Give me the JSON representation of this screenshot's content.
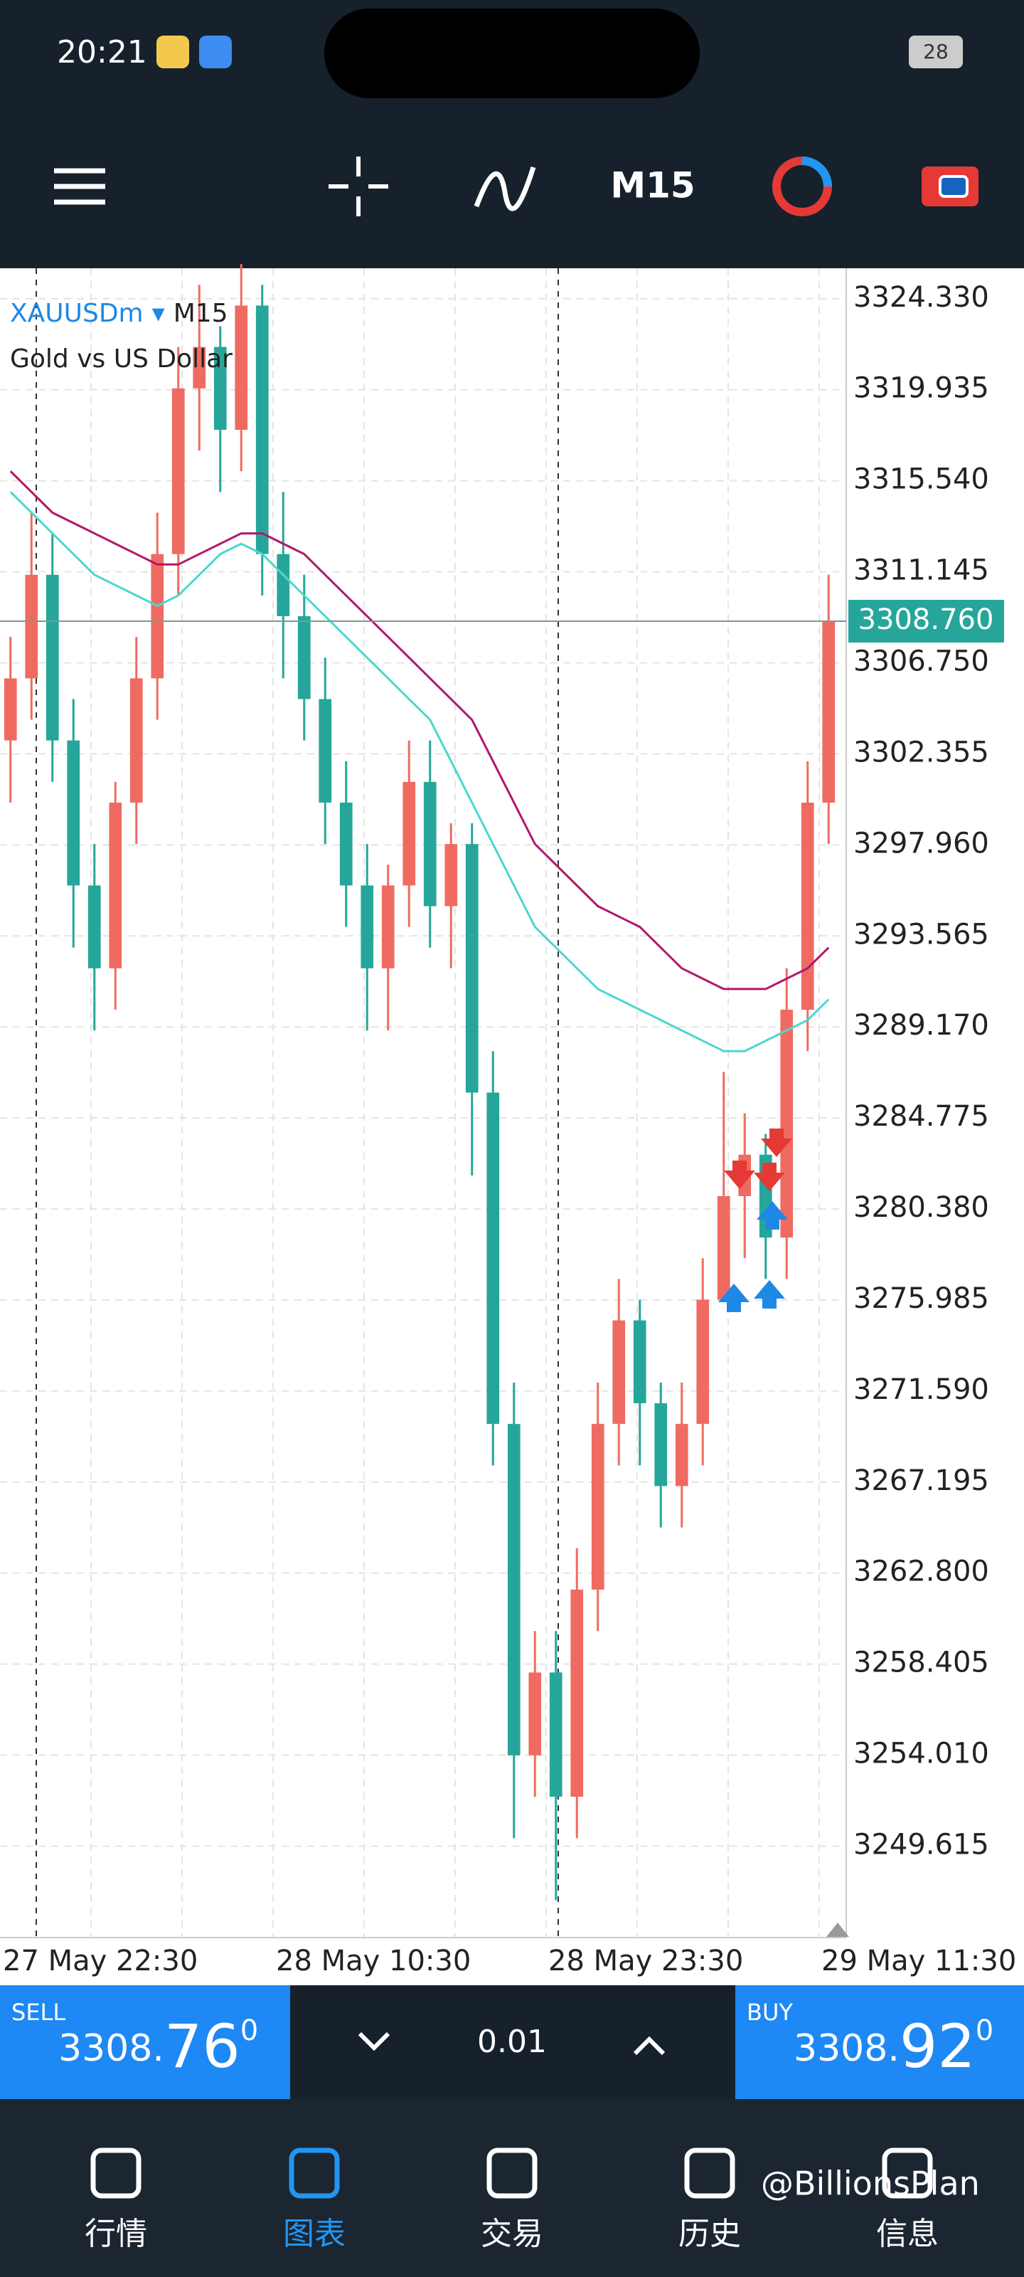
{
  "status_bar": {
    "time": "20:21",
    "battery": "28"
  },
  "toolbar": {
    "timeframe": "M15"
  },
  "chart_data": {
    "type": "candlestick",
    "symbol": "XAUUSDm",
    "timeframe": "M15",
    "description": "Gold vs US Dollar",
    "open": [
      3303,
      3306,
      3311,
      3303,
      3296,
      3292,
      3300,
      3306,
      3312,
      3320,
      3322,
      3318,
      3324,
      3312,
      3309,
      3305,
      3300,
      3296,
      3292,
      3296,
      3301,
      3295,
      3298,
      3286,
      3270,
      3254,
      3258,
      3252,
      3262,
      3270,
      3275,
      3271,
      3267,
      3270,
      3276,
      3281,
      3283,
      3279,
      3290,
      3300
    ],
    "high": [
      3308,
      3314,
      3313,
      3305,
      3298,
      3301,
      3308,
      3314,
      3322,
      3325,
      3323,
      3326,
      3325,
      3315,
      3311,
      3307,
      3302,
      3298,
      3297,
      3303,
      3303,
      3299,
      3299,
      3288,
      3272,
      3260,
      3260,
      3264,
      3272,
      3277,
      3276,
      3272,
      3272,
      3278,
      3287,
      3285,
      3284,
      3292,
      3302,
      3311
    ],
    "low": [
      3300,
      3304,
      3301,
      3293,
      3289,
      3290,
      3298,
      3304,
      3310,
      3317,
      3315,
      3316,
      3310,
      3306,
      3303,
      3298,
      3294,
      3289,
      3289,
      3294,
      3293,
      3292,
      3282,
      3268,
      3250,
      3252,
      3247,
      3250,
      3260,
      3268,
      3268,
      3265,
      3265,
      3268,
      3276,
      3278,
      3277,
      3277,
      3288,
      3298
    ],
    "close": [
      3306,
      3311,
      3303,
      3296,
      3292,
      3300,
      3306,
      3312,
      3320,
      3322,
      3318,
      3324,
      3312,
      3309,
      3305,
      3300,
      3296,
      3292,
      3296,
      3301,
      3295,
      3298,
      3286,
      3270,
      3254,
      3258,
      3252,
      3262,
      3270,
      3275,
      3271,
      3267,
      3270,
      3276,
      3281,
      3283,
      3279,
      3290,
      3300,
      3308.76
    ],
    "up_color": "#ef6b61",
    "down_color": "#26a69a",
    "series": [
      {
        "color": "#b0186a",
        "values": [
          3316,
          3315,
          3314,
          3313.5,
          3313,
          3312.5,
          3312,
          3311.5,
          3311.5,
          3312,
          3312.5,
          3313,
          3313,
          3312.5,
          3312,
          3311,
          3310,
          3309,
          3308,
          3307,
          3306,
          3305,
          3304,
          3302,
          3300,
          3298,
          3297,
          3296,
          3295,
          3294.5,
          3294,
          3293,
          3292,
          3291.5,
          3291,
          3291,
          3291,
          3291.5,
          3292,
          3293
        ]
      },
      {
        "color": "#4dd6d0",
        "values": [
          3315,
          3314,
          3313,
          3312,
          3311,
          3310.5,
          3310,
          3309.5,
          3310,
          3311,
          3312,
          3312.5,
          3312,
          3311,
          3310,
          3309,
          3308,
          3307,
          3306,
          3305,
          3304,
          3302,
          3300,
          3298,
          3296,
          3294,
          3293,
          3292,
          3291,
          3290.5,
          3290,
          3289.5,
          3289,
          3288.5,
          3288,
          3288,
          3288.5,
          3289,
          3289.5,
          3290.5
        ]
      }
    ],
    "ylim": [
      3245.2,
      3325.8
    ],
    "yticks": [
      {
        "value": 3324.33,
        "label": "3324.330"
      },
      {
        "value": 3319.935,
        "label": "3319.935"
      },
      {
        "value": 3315.54,
        "label": "3315.540"
      },
      {
        "value": 3311.145,
        "label": "3311.145"
      },
      {
        "value": 3306.75,
        "label": "3306.750"
      },
      {
        "value": 3302.355,
        "label": "3302.355"
      },
      {
        "value": 3297.96,
        "label": "3297.960"
      },
      {
        "value": 3293.565,
        "label": "3293.565"
      },
      {
        "value": 3289.17,
        "label": "3289.170"
      },
      {
        "value": 3284.775,
        "label": "3284.775"
      },
      {
        "value": 3280.38,
        "label": "3280.380"
      },
      {
        "value": 3275.985,
        "label": "3275.985"
      },
      {
        "value": 3271.59,
        "label": "3271.590"
      },
      {
        "value": 3267.195,
        "label": "3267.195"
      },
      {
        "value": 3262.8,
        "label": "3262.800"
      },
      {
        "value": 3258.405,
        "label": "3258.405"
      },
      {
        "value": 3254.01,
        "label": "3254.010"
      },
      {
        "value": 3249.615,
        "label": "3249.615"
      }
    ],
    "grid": true,
    "x_labels": [
      "27 May 22:30",
      "28 May 10:30",
      "28 May 23:30",
      "29 May 11:30"
    ],
    "current_price": {
      "value": 3308.76,
      "label": "3308.760"
    }
  },
  "trade_bar": {
    "sell_label": "SELL",
    "sell_main": "3308.",
    "sell_big": "76",
    "sell_sup": "0",
    "lot": "0.01",
    "buy_label": "BUY",
    "buy_main": "3308.",
    "buy_big": "92",
    "buy_sup": "0"
  },
  "nav": [
    "行情",
    "图表",
    "交易",
    "历史",
    "信息"
  ],
  "watermark": "@BillionsPlan"
}
